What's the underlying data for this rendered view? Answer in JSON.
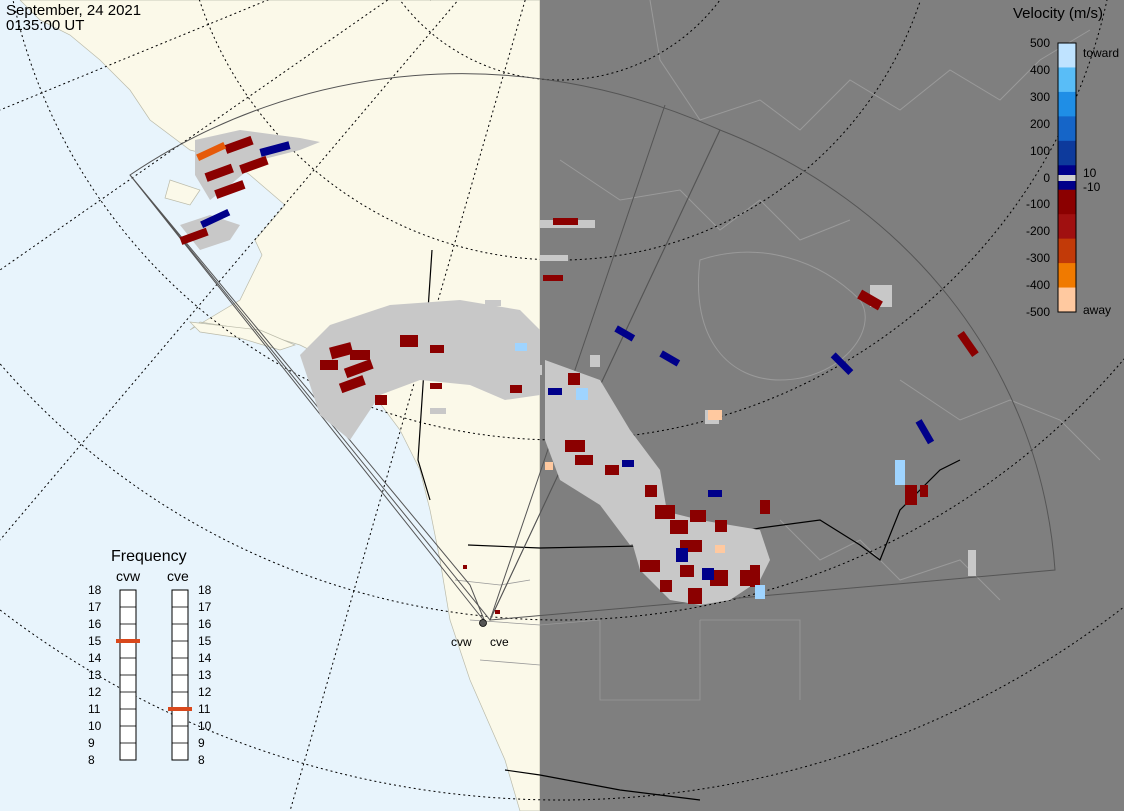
{
  "header": {
    "date": "September, 24 2021",
    "time": "0135:00 UT"
  },
  "colorbar": {
    "title": "Velocity (m/s)",
    "ticks": [
      "500",
      "400",
      "300",
      "200",
      "100",
      "0",
      "-100",
      "-200",
      "-300",
      "-400",
      "-500"
    ],
    "toward_label": "toward",
    "away_label": "away",
    "pos_threshold": "10",
    "neg_threshold": "-10",
    "colors": [
      "#bfe3ff",
      "#59bdf7",
      "#1f8ee6",
      "#1565c8",
      "#0d3a9c",
      "#00008a",
      "#8b0000",
      "#a01010",
      "#c23a08",
      "#f07a00",
      "#ffc9a0"
    ]
  },
  "frequency": {
    "title": "Frequency",
    "radars": [
      {
        "name": "cvw",
        "selected_mhz": 15
      },
      {
        "name": "cve",
        "selected_mhz": 11
      }
    ],
    "scale": [
      "18",
      "17",
      "16",
      "15",
      "14",
      "13",
      "12",
      "11",
      "10",
      "9",
      "8"
    ]
  },
  "radar_sites": {
    "west": "cvw",
    "east": "cve"
  },
  "map": {
    "land_color": "#fbf9e9",
    "ocean_color": "#e8f4fc",
    "night_color": "#7f7f7f",
    "scatter_gray": "#c8c8c8"
  }
}
